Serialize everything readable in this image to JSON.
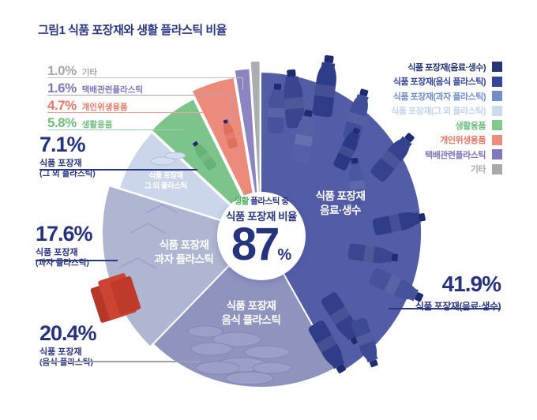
{
  "title": "그림1  식품 포장재와 생활 플라스틱 비율",
  "callouts": {
    "small": [
      {
        "value": "1.0%",
        "label": "기타",
        "color": "#A6A8AB"
      },
      {
        "value": "1.6%",
        "label": "택배관련플라스틱",
        "color": "#7F77BA"
      },
      {
        "value": "4.7%",
        "label": "개인위생용품",
        "color": "#E87763"
      },
      {
        "value": "5.8%",
        "label": "생활용품",
        "color": "#6FBE7E"
      }
    ],
    "big": [
      {
        "value": "7.1%",
        "line1": "식품 포장재",
        "line2": "(그 외 플라스틱)"
      },
      {
        "value": "17.6%",
        "line1": "식품 포장재",
        "line2": "(과자 플라스틱)"
      },
      {
        "value": "20.4%",
        "line1": "식품 포장재",
        "line2": "(음식 플라스틱)"
      }
    ],
    "right": {
      "value": "41.9%",
      "label": "식품 포장재(음료·생수)"
    }
  },
  "legend": [
    {
      "label": "식품 포장재(음료·생수)",
      "color": "#263577"
    },
    {
      "label": "식품 포장재(음식 플라스틱)",
      "color": "#34459A"
    },
    {
      "label": "식품 포장재(과자 플라스틱)",
      "color": "#6F8EC9"
    },
    {
      "label": "식품 포장재(그 외 플라스틱)",
      "color": "#C3D4EC"
    },
    {
      "label": "생활용품",
      "color": "#85C88E"
    },
    {
      "label": "개인위생용품",
      "color": "#EF8A7E"
    },
    {
      "label": "택배관련플라스틱",
      "color": "#8078BC"
    },
    {
      "label": "기타",
      "color": "#A8AAAD"
    }
  ],
  "center": {
    "line1_green": "생활",
    "line1_rest": " 플라스틱 중",
    "line2": "식품 포장재 비율",
    "value": "87",
    "unit": "%"
  },
  "pie_labels": [
    {
      "line1": "식품 포장재",
      "line2": "음료·생수"
    },
    {
      "line1": "식품 포장재",
      "line2": "음식 플라스틱"
    },
    {
      "line1": "식품 포장재",
      "line2": "과자 플라스틱"
    },
    {
      "line1": "식품 포장재",
      "line2": "그 외 플라스틱"
    }
  ],
  "chart_data": {
    "type": "pie",
    "title": "식품 포장재와 생활 플라스틱 비율",
    "center_annotation": "생활 플라스틱 중 식품 포장재 비율 87%",
    "legend_position": "top-right",
    "slices": [
      {
        "label": "식품 포장재(음료·생수)",
        "value": 41.9,
        "color": "#535DA6"
      },
      {
        "label": "식품 포장재(음식 플라스틱)",
        "value": 20.4,
        "color": "#8F94BF"
      },
      {
        "label": "식품 포장재(과자 플라스틱)",
        "value": 17.6,
        "color": "#AFB6D1"
      },
      {
        "label": "식품 포장재(그 외 플라스틱)",
        "value": 7.1,
        "color": "#CBD6EA"
      },
      {
        "label": "생활용품",
        "value": 5.8,
        "color": "#7CC489"
      },
      {
        "label": "개인위생용품",
        "value": 4.7,
        "color": "#EC8A7B"
      },
      {
        "label": "택배관련플라스틱",
        "value": 1.6,
        "color": "#8D85C2"
      },
      {
        "label": "기타",
        "value": 1.0,
        "color": "#ABADB2"
      }
    ]
  }
}
